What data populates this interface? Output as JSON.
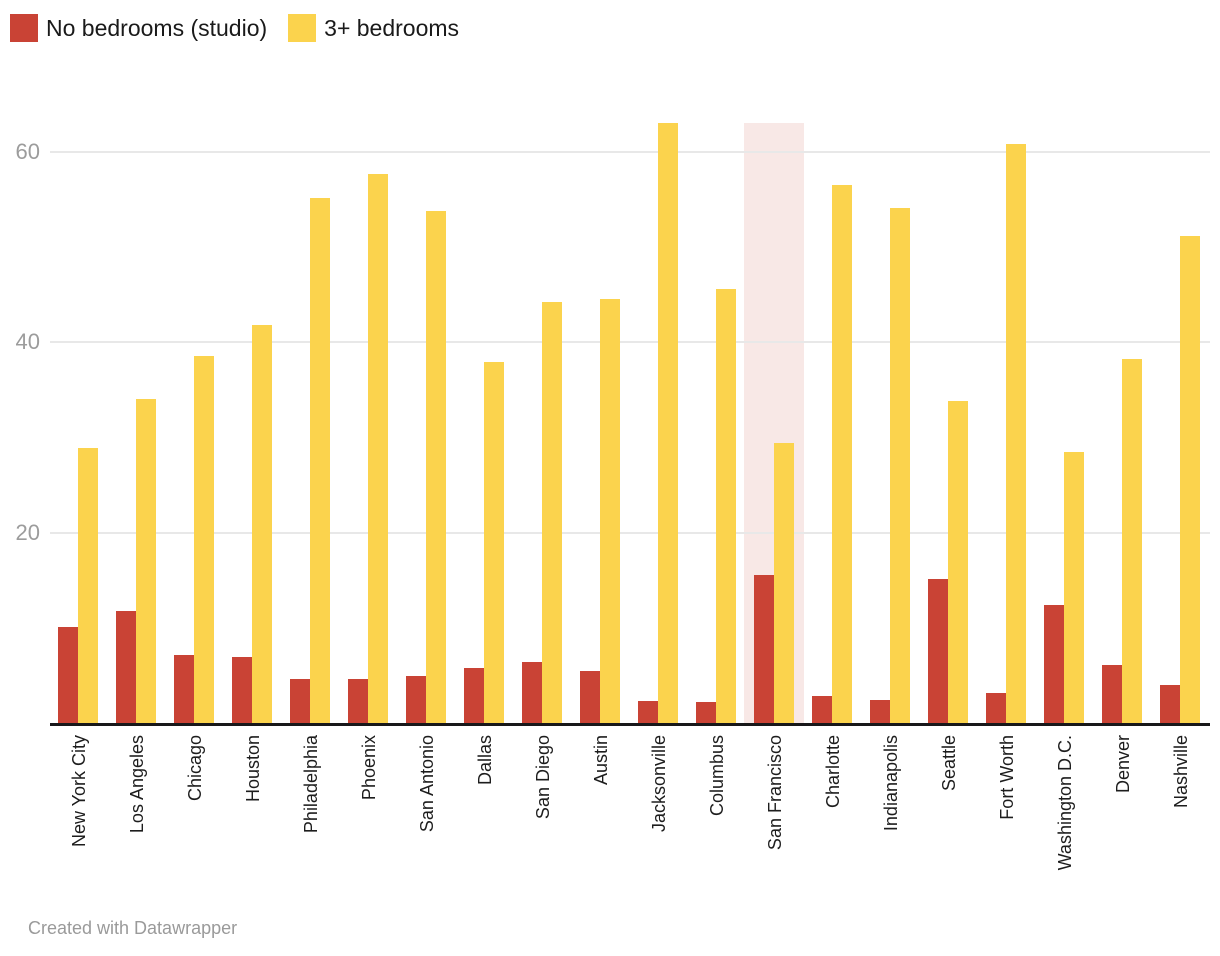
{
  "legend": {
    "items": [
      {
        "label": "No bedrooms (studio)",
        "color": "#c94335"
      },
      {
        "label": "3+ bedrooms",
        "color": "#fbd34d"
      }
    ]
  },
  "footer": {
    "text": "Created with Datawrapper"
  },
  "chart_data": {
    "type": "bar",
    "title": "",
    "xlabel": "",
    "ylabel": "",
    "categories": [
      "New York City",
      "Los Angeles",
      "Chicago",
      "Houston",
      "Philadelphia",
      "Phoenix",
      "San Antonio",
      "Dallas",
      "San Diego",
      "Austin",
      "Jacksonville",
      "Columbus",
      "San Francisco",
      "Charlotte",
      "Indianapolis",
      "Seattle",
      "Fort Worth",
      "Washington D.C.",
      "Denver",
      "Nashville"
    ],
    "series": [
      {
        "name": "No bedrooms (studio)",
        "color": "#c94335",
        "values": [
          10.1,
          11.8,
          7.1,
          6.9,
          4.6,
          4.6,
          4.9,
          5.8,
          6.4,
          5.5,
          2.3,
          2.2,
          15.5,
          2.8,
          2.4,
          15.1,
          3.1,
          12.4,
          6.1,
          4.0
        ]
      },
      {
        "name": "3+ bedrooms",
        "color": "#fbd34d",
        "values": [
          28.9,
          34.0,
          38.5,
          41.8,
          55.1,
          57.6,
          53.8,
          37.9,
          44.2,
          44.5,
          63.0,
          45.6,
          29.4,
          56.5,
          54.1,
          33.8,
          60.8,
          28.5,
          38.2,
          51.1
        ]
      }
    ],
    "yticks": [
      20,
      40,
      60
    ],
    "ylim": [
      0,
      63
    ],
    "grid": true,
    "legend_position": "top-left",
    "highlighted_category": "San Francisco",
    "highlight_color": "#f8e8e6"
  }
}
